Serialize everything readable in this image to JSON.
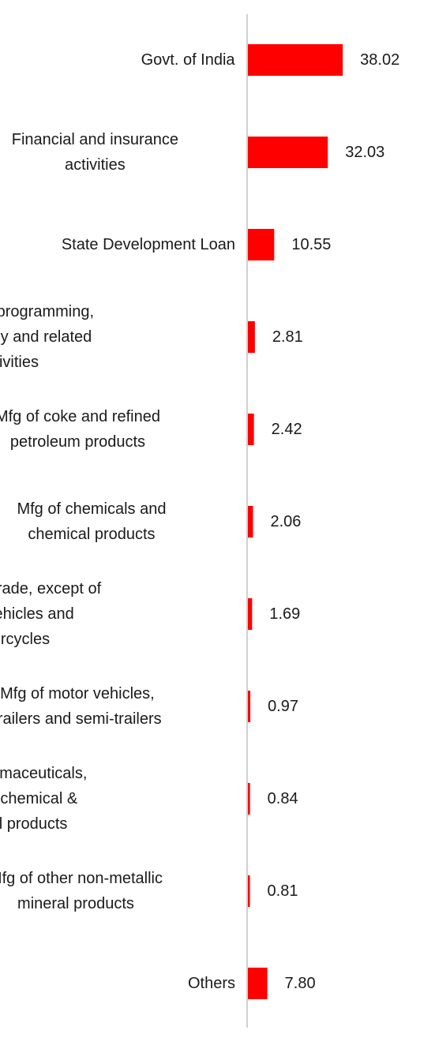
{
  "chart_data": {
    "type": "bar",
    "orientation": "horizontal",
    "categories": [
      "Govt. of India",
      "Financial and insurance activities",
      "State Development Loan",
      "Computer programming, consultancy and related activities",
      "Mfg of coke and refined petroleum products",
      "Mfg of chemicals and chemical products",
      "Wholesale trade, except of motor vehicles and motorcycles",
      "Mfg of motor vehicles, trailers and semi-trailers",
      "Mfg of pharmaceuticals, medicinal chemical & botanical products",
      "Mfg of other non-metallic mineral products",
      "Others"
    ],
    "category_lines": [
      [
        "Govt. of India"
      ],
      [
        "Financial and insurance",
        "activities"
      ],
      [
        "State Development Loan"
      ],
      [
        "Computer programming,",
        "consultancy and related",
        "activities"
      ],
      [
        "Mfg of coke and refined",
        "petroleum products"
      ],
      [
        "Mfg of chemicals and",
        "chemical products"
      ],
      [
        "Wholesale trade, except of",
        "motor vehicles and",
        "motorcycles"
      ],
      [
        "Mfg of motor vehicles,",
        "trailers and semi-trailers"
      ],
      [
        "Mfg of pharmaceuticals,",
        "medicinal chemical &",
        "botanical products"
      ],
      [
        "Mfg of other non-metallic",
        "mineral products"
      ],
      [
        "Others"
      ]
    ],
    "values": [
      38.02,
      32.03,
      10.55,
      2.81,
      2.42,
      2.06,
      1.69,
      0.97,
      0.84,
      0.81,
      7.8
    ],
    "value_labels": [
      "38.02",
      "32.03",
      "10.55",
      "2.81",
      "2.42",
      "2.06",
      "1.69",
      "0.97",
      "0.84",
      "0.81",
      "7.80"
    ],
    "title": "",
    "xlabel": "",
    "ylabel": "",
    "xlim": [
      0,
      40
    ],
    "grid": false,
    "legend": "none",
    "bar_color": "#ff0000",
    "axis_color": "#d0d0d0",
    "text_color": "#1a1a1a"
  }
}
